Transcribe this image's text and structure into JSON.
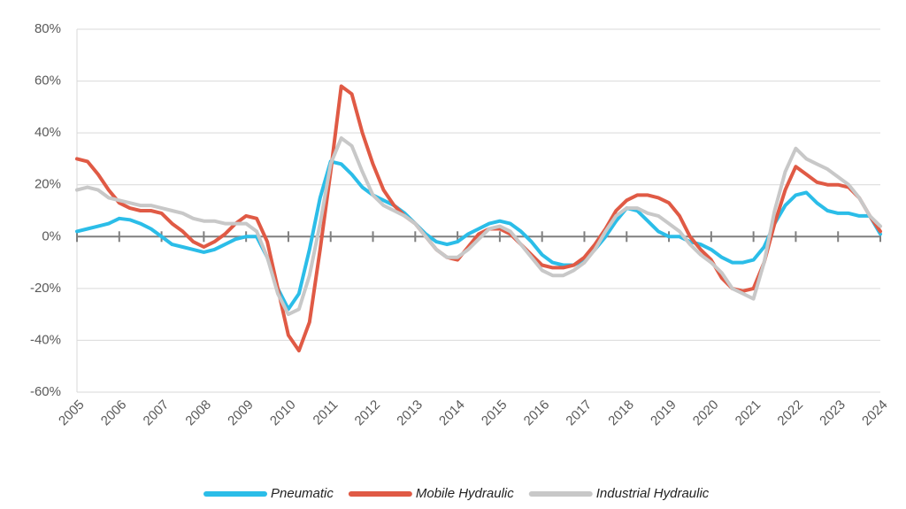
{
  "chart_data": {
    "type": "line",
    "x": [
      2005,
      2005.25,
      2005.5,
      2005.75,
      2006,
      2006.25,
      2006.5,
      2006.75,
      2007,
      2007.25,
      2007.5,
      2007.75,
      2008,
      2008.25,
      2008.5,
      2008.75,
      2009,
      2009.25,
      2009.5,
      2009.75,
      2010,
      2010.25,
      2010.5,
      2010.75,
      2011,
      2011.25,
      2011.5,
      2011.75,
      2012,
      2012.25,
      2012.5,
      2012.75,
      2013,
      2013.25,
      2013.5,
      2013.75,
      2014,
      2014.25,
      2014.5,
      2014.75,
      2015,
      2015.25,
      2015.5,
      2015.75,
      2016,
      2016.25,
      2016.5,
      2016.75,
      2017,
      2017.25,
      2017.5,
      2017.75,
      2018,
      2018.25,
      2018.5,
      2018.75,
      2019,
      2019.25,
      2019.5,
      2019.75,
      2020,
      2020.25,
      2020.5,
      2020.75,
      2021,
      2021.25,
      2021.5,
      2021.75,
      2022,
      2022.25,
      2022.5,
      2022.75,
      2023,
      2023.25,
      2023.5,
      2023.75,
      2024
    ],
    "series": [
      {
        "name": "Pneumatic",
        "color": "#2bbde8",
        "values": [
          2,
          3,
          4,
          5,
          7,
          6.5,
          5,
          3,
          0,
          -3,
          -4,
          -5,
          -6,
          -5,
          -3,
          -1,
          0,
          0,
          -8,
          -20,
          -28,
          -22,
          -5,
          15,
          29,
          28,
          24,
          19,
          16,
          14,
          12,
          9,
          5,
          1,
          -2,
          -3,
          -2,
          1,
          3,
          5,
          6,
          5,
          2,
          -2,
          -7,
          -10,
          -11,
          -11,
          -9,
          -5,
          0,
          6,
          11,
          10,
          6,
          2,
          0,
          0,
          -2,
          -3,
          -5,
          -8,
          -10,
          -10,
          -9,
          -4,
          5,
          12,
          16,
          17,
          13,
          10,
          9,
          9,
          8,
          8,
          1
        ]
      },
      {
        "name": "Mobile Hydraulic",
        "color": "#e05a45",
        "values": [
          30,
          29,
          24,
          18,
          13,
          11,
          10,
          10,
          9,
          5,
          2,
          -2,
          -4,
          -2,
          1,
          5,
          8,
          7,
          -2,
          -20,
          -38,
          -44,
          -33,
          -5,
          25,
          58,
          55,
          40,
          28,
          18,
          12,
          8,
          5,
          0,
          -5,
          -8,
          -9,
          -4,
          1,
          3,
          3,
          1,
          -3,
          -7,
          -11,
          -12,
          -12,
          -11,
          -8,
          -3,
          3,
          10,
          14,
          16,
          16,
          15,
          13,
          8,
          0,
          -5,
          -9,
          -16,
          -20,
          -21,
          -20,
          -10,
          5,
          18,
          27,
          24,
          21,
          20,
          20,
          19,
          15,
          8,
          2
        ]
      },
      {
        "name": "Industrial Hydraulic",
        "color": "#c8c8c8",
        "values": [
          18,
          19,
          18,
          15,
          14,
          13,
          12,
          12,
          11,
          10,
          9,
          7,
          6,
          6,
          5,
          5,
          5,
          2,
          -8,
          -22,
          -30,
          -28,
          -15,
          5,
          28,
          38,
          35,
          25,
          16,
          12,
          10,
          8,
          5,
          0,
          -5,
          -8,
          -8,
          -5,
          -1,
          3,
          4,
          2,
          -3,
          -8,
          -13,
          -15,
          -15,
          -13,
          -10,
          -5,
          2,
          8,
          11,
          11,
          9,
          8,
          5,
          2,
          -3,
          -7,
          -10,
          -14,
          -20,
          -22,
          -24,
          -10,
          10,
          25,
          34,
          30,
          28,
          26,
          23,
          20,
          15,
          8,
          4
        ]
      }
    ],
    "xlim": [
      2005,
      2024
    ],
    "xticks": [
      2005,
      2006,
      2007,
      2008,
      2009,
      2010,
      2011,
      2012,
      2013,
      2014,
      2015,
      2016,
      2017,
      2018,
      2019,
      2020,
      2021,
      2022,
      2023,
      2024
    ],
    "ylim": [
      -60,
      80
    ],
    "yticks": [
      {
        "value": -60,
        "label": "-60%"
      },
      {
        "value": -40,
        "label": "-40%"
      },
      {
        "value": -20,
        "label": "-20%"
      },
      {
        "value": 0,
        "label": "0%"
      },
      {
        "value": 20,
        "label": "20%"
      },
      {
        "value": 40,
        "label": "40%"
      },
      {
        "value": 60,
        "label": "60%"
      },
      {
        "value": 80,
        "label": "80%"
      }
    ],
    "grid": true
  }
}
